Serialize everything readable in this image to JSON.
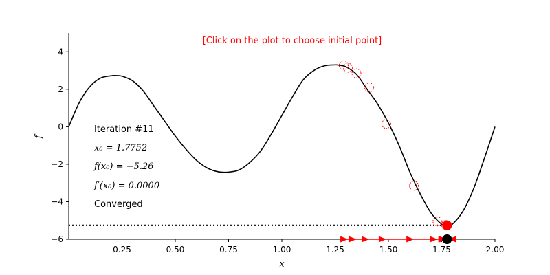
{
  "chart_data": {
    "type": "line",
    "title": "[Click on the plot to choose initial point]",
    "xlabel": "x",
    "ylabel": "f",
    "xlim": [
      0,
      2
    ],
    "ylim": [
      -6,
      5
    ],
    "grid": false,
    "xticks": [
      0.25,
      0.5,
      0.75,
      1.0,
      1.25,
      1.5,
      1.75,
      2.0
    ],
    "xtick_labels": [
      "0.25",
      "0.50",
      "0.75",
      "1.00",
      "1.25",
      "1.50",
      "1.75",
      "2.00"
    ],
    "yticks": [
      -6,
      -4,
      -2,
      0,
      2,
      4
    ],
    "ytick_labels": [
      "−6",
      "−4",
      "−2",
      "0",
      "2",
      "4"
    ],
    "curve": {
      "x": [
        0.0,
        0.05,
        0.1,
        0.15,
        0.2,
        0.22,
        0.25,
        0.3,
        0.35,
        0.4,
        0.45,
        0.5,
        0.55,
        0.6,
        0.65,
        0.7,
        0.75,
        0.8,
        0.85,
        0.9,
        0.95,
        1.0,
        1.05,
        1.1,
        1.15,
        1.2,
        1.25,
        1.27,
        1.3,
        1.35,
        1.4,
        1.45,
        1.5,
        1.55,
        1.6,
        1.65,
        1.7,
        1.75,
        1.775,
        1.8,
        1.85,
        1.9,
        1.95,
        2.0
      ],
      "y": [
        0.0,
        1.3,
        2.15,
        2.6,
        2.72,
        2.73,
        2.7,
        2.45,
        1.9,
        1.1,
        0.3,
        -0.5,
        -1.2,
        -1.8,
        -2.2,
        -2.4,
        -2.42,
        -2.3,
        -1.9,
        -1.3,
        -0.4,
        0.6,
        1.6,
        2.5,
        3.0,
        3.25,
        3.3,
        3.28,
        3.2,
        2.8,
        2.0,
        1.2,
        0.2,
        -1.0,
        -2.4,
        -3.6,
        -4.6,
        -5.2,
        -5.26,
        -5.2,
        -4.5,
        -3.3,
        -1.7,
        0.0
      ]
    },
    "iterates": {
      "x": [
        1.29,
        1.31,
        1.35,
        1.41,
        1.49,
        1.62,
        1.73,
        1.77,
        1.775,
        1.7752,
        1.7752
      ],
      "y": [
        3.28,
        3.15,
        2.85,
        2.1,
        0.15,
        -3.15,
        -5.05,
        -5.24,
        -5.26,
        -5.26,
        -5.26
      ]
    },
    "current_point": {
      "x": 1.7752,
      "y": -5.26
    },
    "baseline_level": -6,
    "hline_level": -5.26,
    "colors": {
      "curve": "#000000",
      "iterates": "#ff0000",
      "current": "#ff0000",
      "current_on_axis": "#000000",
      "hint": "#ff0000"
    }
  },
  "info": {
    "iteration_label": "Iteration #11",
    "x0_label": "x₀ = 1.7752",
    "fx0_label": "f(x₀) = −5.26",
    "dfx0_label": "f′(x₀) = 0.0000",
    "status": "Converged"
  }
}
